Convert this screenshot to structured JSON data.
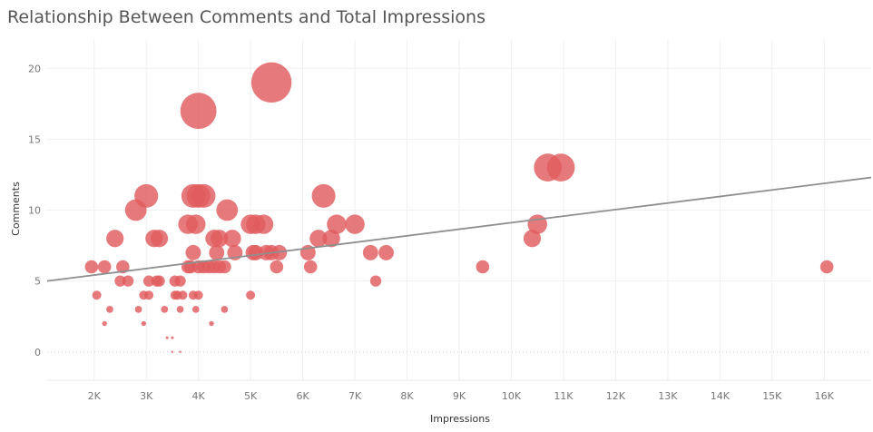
{
  "chart_data": {
    "type": "scatter",
    "title": "Relationship Between Comments and Total Impressions",
    "xlabel": "Impressions",
    "ylabel": "Comments",
    "xlim": [
      1100,
      16900
    ],
    "ylim": [
      -2,
      22
    ],
    "x_ticks": [
      2000,
      3000,
      4000,
      5000,
      6000,
      7000,
      8000,
      9000,
      10000,
      11000,
      12000,
      13000,
      14000,
      15000,
      16000
    ],
    "x_tick_labels": [
      "2K",
      "3K",
      "4K",
      "5K",
      "6K",
      "7K",
      "8K",
      "9K",
      "10K",
      "11K",
      "12K",
      "13K",
      "14K",
      "15K",
      "16K"
    ],
    "y_ticks": [
      0,
      5,
      10,
      15,
      20
    ],
    "y_tick_labels": [
      "0",
      "5",
      "10",
      "15",
      "20"
    ],
    "color": "#e05b5e",
    "trend_color": "#8f8f8f",
    "trend_line": {
      "x": [
        1100,
        16900
      ],
      "y": [
        5.0,
        12.3
      ]
    },
    "grid": true,
    "points": [
      {
        "x": 1950,
        "y": 6
      },
      {
        "x": 2050,
        "y": 4
      },
      {
        "x": 2200,
        "y": 6
      },
      {
        "x": 2200,
        "y": 2
      },
      {
        "x": 2300,
        "y": 3
      },
      {
        "x": 2400,
        "y": 8
      },
      {
        "x": 2500,
        "y": 5
      },
      {
        "x": 2550,
        "y": 6
      },
      {
        "x": 2650,
        "y": 5
      },
      {
        "x": 2800,
        "y": 10
      },
      {
        "x": 2850,
        "y": 3
      },
      {
        "x": 2950,
        "y": 2
      },
      {
        "x": 2950,
        "y": 4
      },
      {
        "x": 3000,
        "y": 11
      },
      {
        "x": 3050,
        "y": 4
      },
      {
        "x": 3050,
        "y": 5
      },
      {
        "x": 3150,
        "y": 8
      },
      {
        "x": 3200,
        "y": 5
      },
      {
        "x": 3250,
        "y": 8
      },
      {
        "x": 3250,
        "y": 5
      },
      {
        "x": 3350,
        "y": 3
      },
      {
        "x": 3400,
        "y": 1
      },
      {
        "x": 3500,
        "y": 1
      },
      {
        "x": 3500,
        "y": 0
      },
      {
        "x": 3550,
        "y": 4
      },
      {
        "x": 3550,
        "y": 5
      },
      {
        "x": 3600,
        "y": 4
      },
      {
        "x": 3650,
        "y": 5
      },
      {
        "x": 3650,
        "y": 3
      },
      {
        "x": 3700,
        "y": 4
      },
      {
        "x": 3650,
        "y": 0
      },
      {
        "x": 3800,
        "y": 9
      },
      {
        "x": 3800,
        "y": 6
      },
      {
        "x": 3850,
        "y": 6
      },
      {
        "x": 3900,
        "y": 11
      },
      {
        "x": 3900,
        "y": 7
      },
      {
        "x": 3900,
        "y": 4
      },
      {
        "x": 3950,
        "y": 9
      },
      {
        "x": 3950,
        "y": 3
      },
      {
        "x": 4000,
        "y": 17
      },
      {
        "x": 4000,
        "y": 11
      },
      {
        "x": 4000,
        "y": 6
      },
      {
        "x": 4000,
        "y": 4
      },
      {
        "x": 4100,
        "y": 11
      },
      {
        "x": 4100,
        "y": 6
      },
      {
        "x": 4200,
        "y": 6
      },
      {
        "x": 4250,
        "y": 2
      },
      {
        "x": 4300,
        "y": 8
      },
      {
        "x": 4300,
        "y": 6
      },
      {
        "x": 4350,
        "y": 7
      },
      {
        "x": 4400,
        "y": 8
      },
      {
        "x": 4400,
        "y": 6
      },
      {
        "x": 4500,
        "y": 6
      },
      {
        "x": 4500,
        "y": 3
      },
      {
        "x": 4550,
        "y": 10
      },
      {
        "x": 4650,
        "y": 8
      },
      {
        "x": 4700,
        "y": 7
      },
      {
        "x": 5000,
        "y": 9
      },
      {
        "x": 5000,
        "y": 4
      },
      {
        "x": 5050,
        "y": 7
      },
      {
        "x": 5100,
        "y": 9
      },
      {
        "x": 5100,
        "y": 7
      },
      {
        "x": 5250,
        "y": 9
      },
      {
        "x": 5300,
        "y": 7
      },
      {
        "x": 5400,
        "y": 19
      },
      {
        "x": 5400,
        "y": 7
      },
      {
        "x": 5500,
        "y": 6
      },
      {
        "x": 5550,
        "y": 7
      },
      {
        "x": 6100,
        "y": 7
      },
      {
        "x": 6150,
        "y": 6
      },
      {
        "x": 6300,
        "y": 8
      },
      {
        "x": 6400,
        "y": 11
      },
      {
        "x": 6550,
        "y": 8
      },
      {
        "x": 6650,
        "y": 9
      },
      {
        "x": 7000,
        "y": 9
      },
      {
        "x": 7300,
        "y": 7
      },
      {
        "x": 7400,
        "y": 5
      },
      {
        "x": 7600,
        "y": 7
      },
      {
        "x": 9450,
        "y": 6
      },
      {
        "x": 10400,
        "y": 8
      },
      {
        "x": 10500,
        "y": 9
      },
      {
        "x": 10700,
        "y": 13
      },
      {
        "x": 10950,
        "y": 13
      },
      {
        "x": 16050,
        "y": 6
      }
    ]
  }
}
